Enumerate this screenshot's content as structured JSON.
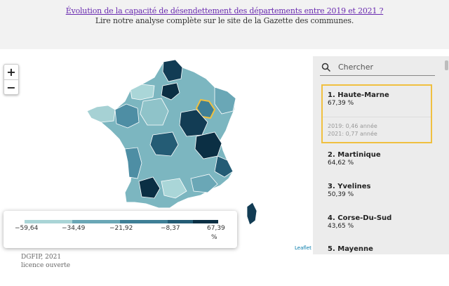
{
  "header": {
    "title": "Évolution de la capacité de désendettement des départements entre 2019 et 2021 ?",
    "subtitle": "Lire notre analyse complète sur le site de la Gazette des communes."
  },
  "zoom": {
    "in_label": "+",
    "out_label": "−"
  },
  "legend": {
    "ticks": [
      "−59,64",
      "−34,49",
      "−21,92",
      "−8,37",
      "67,39"
    ],
    "unit": "%",
    "colors": [
      "#a9d4d6",
      "#6aa7b6",
      "#3f7f96",
      "#245c75",
      "#0b2f44"
    ]
  },
  "attribution": "Leaflet",
  "source": {
    "line1": "DGFIP, 2021",
    "line2": "licence ouverte"
  },
  "panel": {
    "search_placeholder": "Chercher",
    "selected": {
      "name": "1. Haute-Marne",
      "value": "67,39 %",
      "year2019": "2019: 0,46 année",
      "year2021": "2021: 0,77 année"
    },
    "items": [
      {
        "name": "2. Martinique",
        "value": "64,62 %"
      },
      {
        "name": "3. Yvelines",
        "value": "50,39 %"
      },
      {
        "name": "4. Corse-Du-Sud",
        "value": "43,65 %"
      },
      {
        "name": "5. Mayenne",
        "value": ""
      }
    ]
  },
  "colors": {
    "highlight": "#f0c040",
    "title_link": "#6a2bb0",
    "panel_bg": "#ececec"
  }
}
